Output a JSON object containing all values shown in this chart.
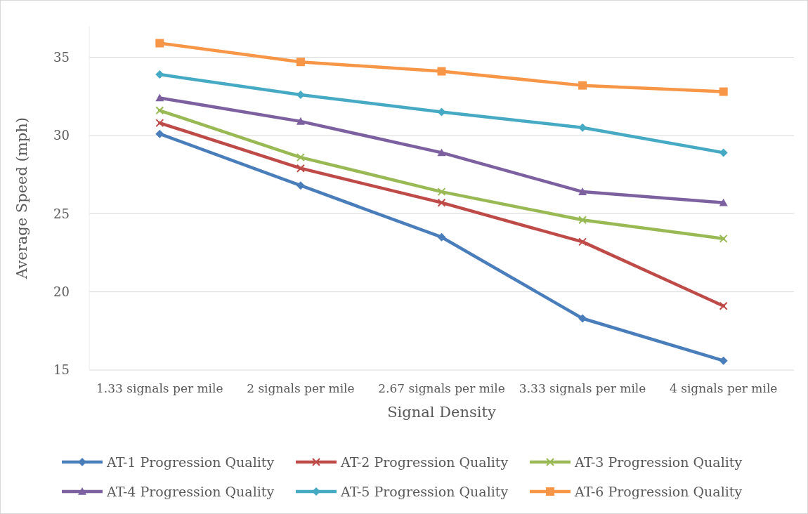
{
  "chart_data": {
    "type": "line",
    "xlabel": "Signal Density",
    "ylabel": "Average Speed (mph)",
    "categories": [
      "1.33 signals per mile",
      "2 signals per mile",
      "2.67 signals per mile",
      "3.33 signals per mile",
      "4 signals per mile"
    ],
    "ylim": [
      15,
      37
    ],
    "yticks": [
      15,
      20,
      25,
      30,
      35
    ],
    "grid": "y",
    "legend": "bottom",
    "line_style": "solid",
    "series": [
      {
        "name": "AT-1 Progression Quality",
        "color": "#4a7ebb",
        "marker": "diamond",
        "values": [
          30.1,
          26.8,
          23.5,
          18.3,
          15.6
        ]
      },
      {
        "name": "AT-2 Progression Quality",
        "color": "#be4b48",
        "marker": "cross",
        "values": [
          30.8,
          27.9,
          25.7,
          23.2,
          19.1
        ]
      },
      {
        "name": "AT-3 Progression Quality",
        "color": "#98b954",
        "marker": "cross",
        "values": [
          31.6,
          28.6,
          26.4,
          24.6,
          23.4
        ]
      },
      {
        "name": "AT-4 Progression Quality",
        "color": "#7d60a0",
        "marker": "triangle",
        "values": [
          32.4,
          30.9,
          28.9,
          26.4,
          25.7
        ]
      },
      {
        "name": "AT-5 Progression Quality",
        "color": "#46aac5",
        "marker": "diamond",
        "values": [
          33.9,
          32.6,
          31.5,
          30.5,
          28.9
        ]
      },
      {
        "name": "AT-6 Progression Quality",
        "color": "#f79646",
        "marker": "square",
        "values": [
          35.9,
          34.7,
          34.1,
          33.2,
          32.8
        ]
      }
    ]
  }
}
